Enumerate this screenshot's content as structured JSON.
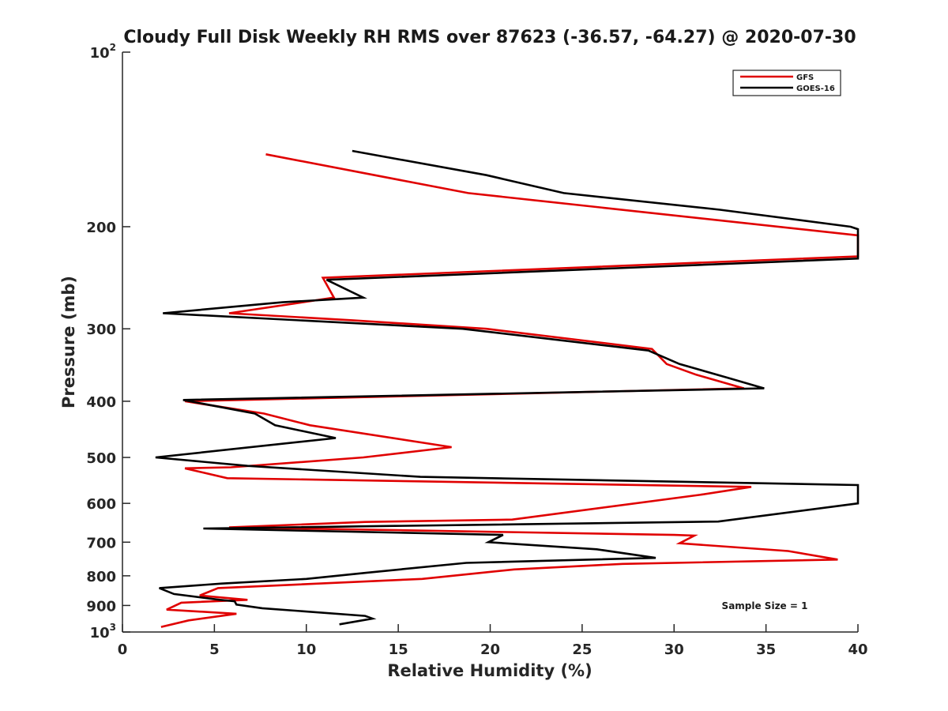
{
  "chart_data": {
    "type": "line",
    "title": "Cloudy Full Disk Weekly RH RMS over 87623 (-36.57, -64.27) @ 2020-07-30",
    "xlabel": "Relative Humidity (%)",
    "ylabel": "Pressure (mb)",
    "xlim": [
      0,
      40
    ],
    "ylim": [
      100,
      1000
    ],
    "yscale": "log",
    "y_reversed": true,
    "grid": false,
    "legend_position": "top-right",
    "x_ticks": [
      "0",
      "5",
      "10",
      "15",
      "20",
      "25",
      "30",
      "35",
      "40"
    ],
    "y_ticks": [
      {
        "value": 100,
        "base": "10",
        "exp": "2"
      },
      {
        "value": 200,
        "label": "200"
      },
      {
        "value": 300,
        "label": "300"
      },
      {
        "value": 400,
        "label": "400"
      },
      {
        "value": 500,
        "label": "500"
      },
      {
        "value": 600,
        "label": "600"
      },
      {
        "value": 700,
        "label": "700"
      },
      {
        "value": 800,
        "label": "800"
      },
      {
        "value": 900,
        "label": "900"
      },
      {
        "value": 1000,
        "base": "10",
        "exp": "3"
      }
    ],
    "annotation": "Sample Size = 1",
    "series": [
      {
        "name": "GFS",
        "color": "#e00000",
        "points": [
          [
            7.8,
            150
          ],
          [
            18.8,
            175
          ],
          [
            40.0,
            207
          ],
          [
            40.0,
            225
          ],
          [
            10.9,
            245
          ],
          [
            11.5,
            265
          ],
          [
            5.8,
            282
          ],
          [
            12.5,
            290
          ],
          [
            19.8,
            300
          ],
          [
            28.8,
            325
          ],
          [
            29.6,
            345
          ],
          [
            31.2,
            360
          ],
          [
            33.8,
            380
          ],
          [
            3.4,
            400
          ],
          [
            7.7,
            420
          ],
          [
            10.2,
            440
          ],
          [
            17.9,
            480
          ],
          [
            13.1,
            500
          ],
          [
            5.9,
            520
          ],
          [
            3.4,
            522
          ],
          [
            5.7,
            543
          ],
          [
            34.2,
            562
          ],
          [
            31.4,
            580
          ],
          [
            21.2,
            640
          ],
          [
            13.2,
            646
          ],
          [
            5.8,
            660
          ],
          [
            30.0,
            680
          ],
          [
            31.1,
            682
          ],
          [
            30.3,
            703
          ],
          [
            36.2,
            725
          ],
          [
            38.9,
            750
          ],
          [
            27.2,
            763
          ],
          [
            21.3,
            780
          ],
          [
            16.3,
            810
          ],
          [
            5.2,
            840
          ],
          [
            4.2,
            865
          ],
          [
            6.8,
            880
          ],
          [
            3.2,
            890
          ],
          [
            2.4,
            915
          ],
          [
            6.2,
            930
          ],
          [
            3.6,
            955
          ],
          [
            2.1,
            980
          ]
        ]
      },
      {
        "name": "GOES-16",
        "color": "#000000",
        "points": [
          [
            12.5,
            148
          ],
          [
            19.8,
            163
          ],
          [
            24.0,
            175
          ],
          [
            32.5,
            187
          ],
          [
            39.6,
            200
          ],
          [
            40.0,
            202
          ],
          [
            40.0,
            227
          ],
          [
            11.1,
            247
          ],
          [
            13.1,
            265
          ],
          [
            8.7,
            270
          ],
          [
            2.2,
            282
          ],
          [
            18.5,
            300
          ],
          [
            28.6,
            327
          ],
          [
            30.3,
            345
          ],
          [
            33.0,
            365
          ],
          [
            34.9,
            380
          ],
          [
            3.3,
            398
          ],
          [
            7.2,
            420
          ],
          [
            8.3,
            440
          ],
          [
            11.6,
            463
          ],
          [
            1.8,
            500
          ],
          [
            6.8,
            517
          ],
          [
            16.2,
            540
          ],
          [
            40.0,
            558
          ],
          [
            40.0,
            600
          ],
          [
            32.4,
            645
          ],
          [
            4.4,
            663
          ],
          [
            20.7,
            680
          ],
          [
            19.9,
            700
          ],
          [
            25.8,
            720
          ],
          [
            29.0,
            745
          ],
          [
            18.7,
            760
          ],
          [
            13.3,
            790
          ],
          [
            10.0,
            810
          ],
          [
            5.4,
            825
          ],
          [
            2.0,
            840
          ],
          [
            2.8,
            860
          ],
          [
            5.3,
            880
          ],
          [
            6.1,
            885
          ],
          [
            6.2,
            897
          ],
          [
            7.6,
            910
          ],
          [
            13.2,
            938
          ],
          [
            13.6,
            948
          ],
          [
            11.8,
            970
          ]
        ]
      }
    ]
  }
}
